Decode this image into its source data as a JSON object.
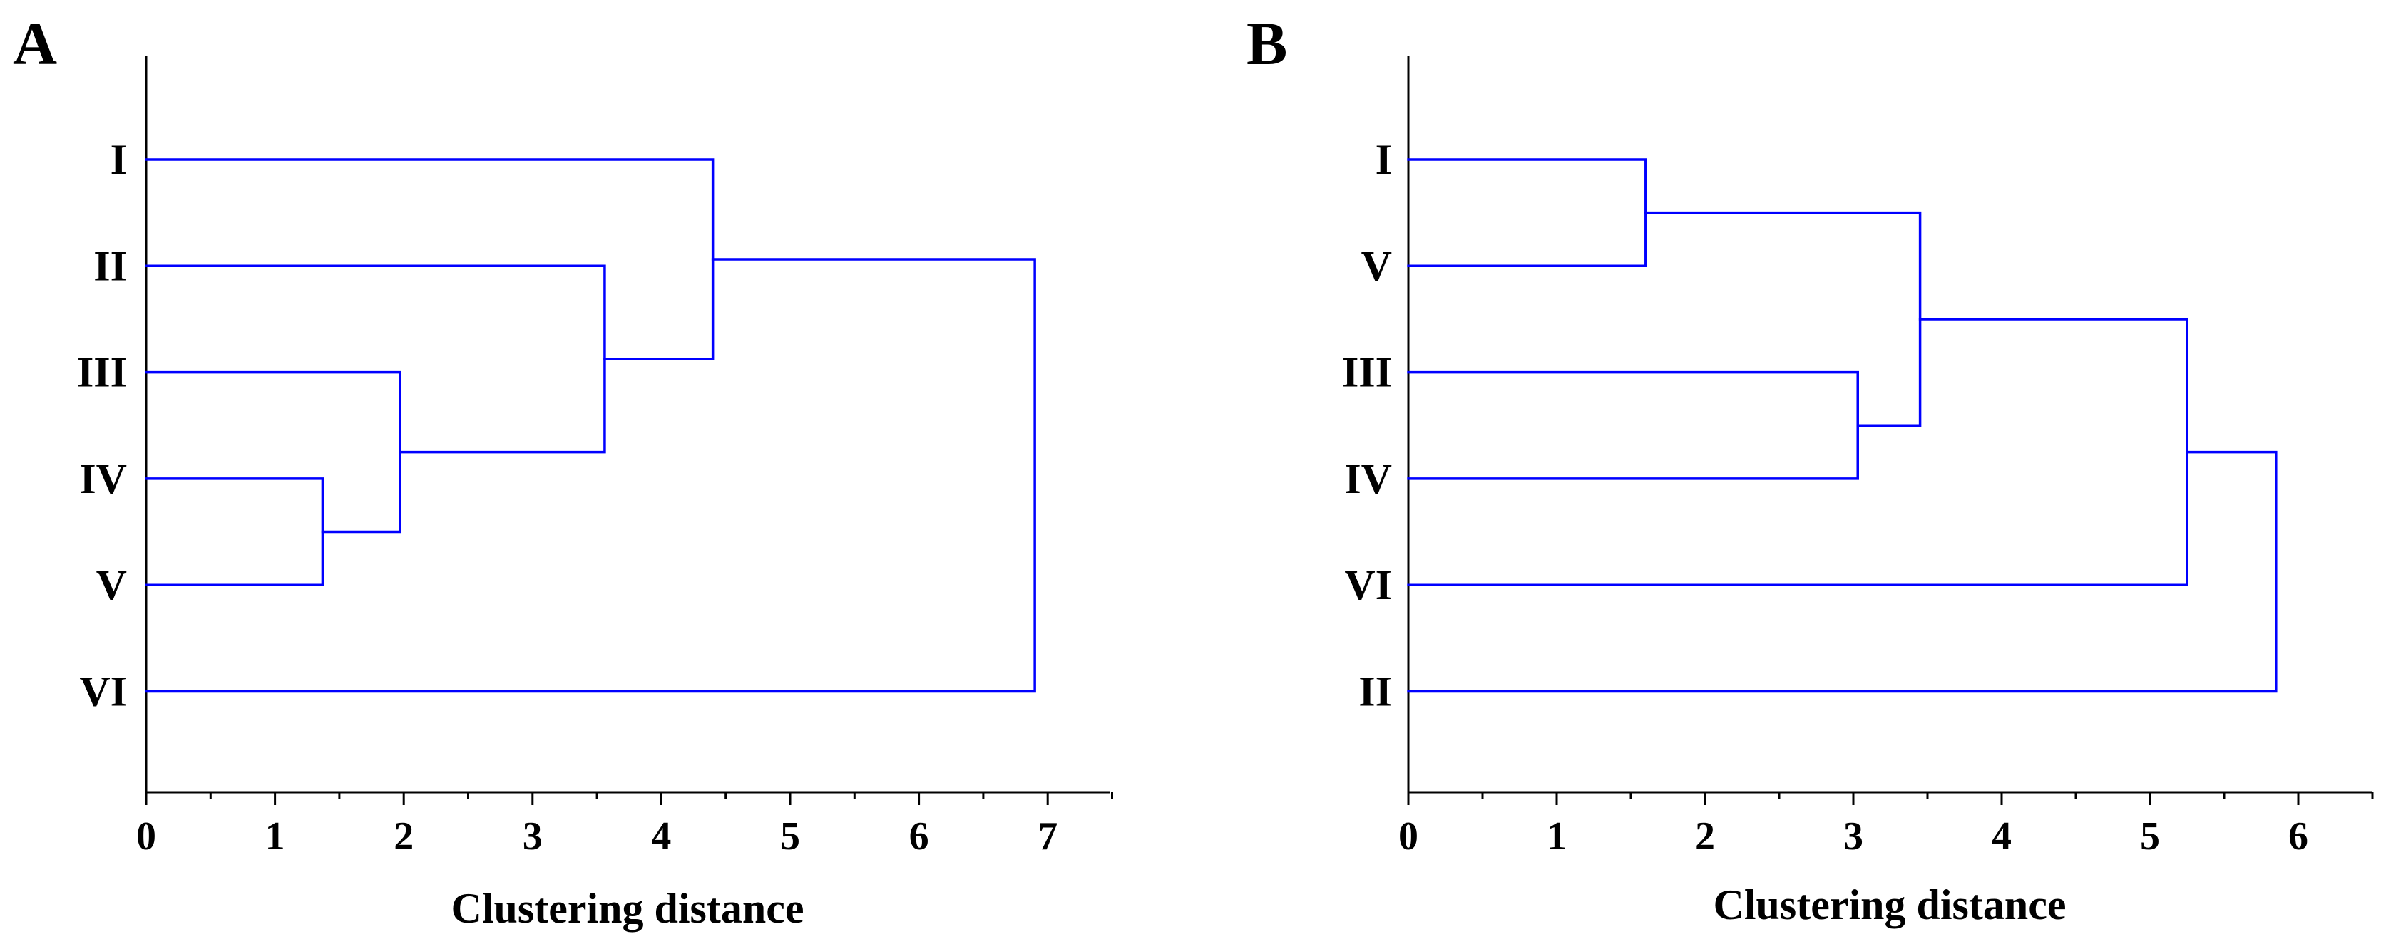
{
  "chart_data": [
    {
      "type": "dendrogram",
      "panel": "A",
      "xlabel": "Clustering distance",
      "xlim": [
        0,
        7.5
      ],
      "xticks": [
        0,
        1,
        2,
        3,
        4,
        5,
        6,
        7
      ],
      "tick_labels": [
        "0",
        "1",
        "2",
        "3",
        "4",
        "5",
        "6",
        "7"
      ],
      "minor_ticks": true,
      "grid": false,
      "line_color": "#0000ff",
      "leaves": [
        "I",
        "II",
        "III",
        "IV",
        "V",
        "VI"
      ],
      "merges": [
        {
          "left": "IV",
          "right": "V",
          "distance": 1.37
        },
        {
          "left": "III",
          "right": "IV-V",
          "distance": 1.97
        },
        {
          "left": "II",
          "right": "III-IV-V",
          "distance": 3.56
        },
        {
          "left": "I",
          "right": "II-III-IV-V",
          "distance": 4.4
        },
        {
          "left": "I-II-III-IV-V",
          "right": "VI",
          "distance": 6.9
        }
      ]
    },
    {
      "type": "dendrogram",
      "panel": "B",
      "xlabel": "Clustering distance",
      "xlim": [
        0,
        6.5
      ],
      "xticks": [
        0,
        1,
        2,
        3,
        4,
        5,
        6
      ],
      "tick_labels": [
        "0",
        "1",
        "2",
        "3",
        "4",
        "5",
        "6"
      ],
      "minor_ticks": true,
      "grid": false,
      "line_color": "#0000ff",
      "leaves": [
        "I",
        "V",
        "III",
        "IV",
        "VI",
        "II"
      ],
      "merges": [
        {
          "left": "I",
          "right": "V",
          "distance": 1.6
        },
        {
          "left": "III",
          "right": "IV",
          "distance": 3.03
        },
        {
          "left": "I-V",
          "right": "III-IV",
          "distance": 3.45
        },
        {
          "left": "I-V-III-IV",
          "right": "VI",
          "distance": 5.25
        },
        {
          "left": "I-V-III-IV-VI",
          "right": "II",
          "distance": 5.85
        }
      ]
    }
  ]
}
